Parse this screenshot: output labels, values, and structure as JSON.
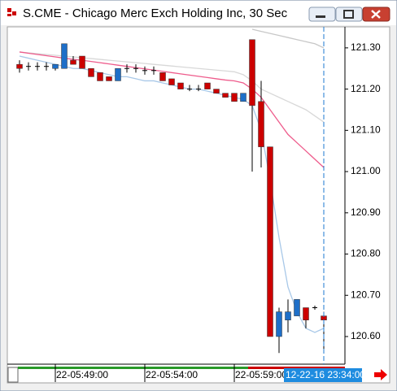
{
  "chart_data": {
    "type": "candlestick",
    "title": "S.CME - Chicago Merc Exch Holding Inc, 30 Sec",
    "categories": [
      null,
      null,
      null,
      null,
      "22-05:49:00",
      null,
      null,
      null,
      null,
      null,
      null,
      null,
      null,
      null,
      "22-05:54:00",
      null,
      null,
      null,
      null,
      null,
      null,
      null,
      null,
      null,
      "22-05:59:00",
      null,
      null,
      null,
      null,
      null,
      null,
      null,
      null,
      null,
      null
    ],
    "open": [
      121.26,
      121.255,
      121.255,
      121.255,
      121.25,
      121.25,
      121.27,
      121.28,
      121.25,
      121.24,
      121.23,
      121.22,
      121.25,
      121.25,
      121.245,
      121.245,
      121.24,
      121.225,
      121.215,
      121.2,
      121.2,
      121.215,
      121.2,
      121.19,
      121.19,
      121.17,
      121.32,
      121.17,
      121.06,
      120.6,
      120.64,
      120.65,
      120.67,
      120.67,
      120.65
    ],
    "high": [
      121.27,
      121.265,
      121.265,
      121.265,
      121.26,
      121.31,
      121.28,
      121.28,
      121.25,
      121.24,
      121.23,
      121.25,
      121.26,
      121.26,
      121.255,
      121.255,
      121.24,
      121.225,
      121.215,
      121.21,
      121.21,
      121.215,
      121.2,
      121.19,
      121.19,
      121.19,
      121.32,
      121.22,
      121.06,
      120.67,
      120.69,
      120.69,
      120.67,
      120.675,
      120.66
    ],
    "low": [
      121.24,
      121.245,
      121.245,
      121.245,
      121.245,
      121.25,
      121.26,
      121.25,
      121.23,
      121.22,
      121.22,
      121.22,
      121.24,
      121.24,
      121.235,
      121.235,
      121.22,
      121.21,
      121.2,
      121.195,
      121.195,
      121.2,
      121.19,
      121.18,
      121.17,
      121.17,
      121.0,
      121.01,
      120.6,
      120.56,
      120.61,
      120.65,
      120.62,
      120.665,
      120.57
    ],
    "close": [
      121.25,
      121.255,
      121.255,
      121.255,
      121.26,
      121.31,
      121.26,
      121.25,
      121.23,
      121.22,
      121.22,
      121.25,
      121.25,
      121.25,
      121.245,
      121.245,
      121.22,
      121.21,
      121.2,
      121.2,
      121.2,
      121.2,
      121.19,
      121.18,
      121.17,
      121.19,
      121.16,
      121.06,
      120.6,
      120.66,
      120.66,
      120.69,
      120.64,
      120.67,
      120.64
    ],
    "up_color": "#1e6fc8",
    "down_color": "#cc0000",
    "overlays": [
      {
        "color": "#d8d8d8",
        "values": [
          121.29,
          121.288,
          121.286,
          121.284,
          121.282,
          121.28,
          121.278,
          121.276,
          121.274,
          121.272,
          121.27,
          121.268,
          121.266,
          121.264,
          121.262,
          121.26,
          121.258,
          121.256,
          121.254,
          121.252,
          121.25,
          121.248,
          121.246,
          121.244,
          121.242,
          121.235,
          121.22,
          121.2,
          121.19,
          121.18,
          121.17,
          121.16,
          121.15,
          121.135,
          121.12
        ]
      },
      {
        "color": "#c8c8c8",
        "values": [
          null,
          null,
          null,
          null,
          null,
          null,
          null,
          null,
          null,
          null,
          null,
          null,
          null,
          null,
          null,
          null,
          null,
          null,
          null,
          null,
          null,
          null,
          null,
          null,
          null,
          null,
          121.345,
          121.34,
          121.335,
          121.33,
          121.325,
          121.32,
          121.315,
          121.31,
          121.3
        ]
      },
      {
        "color": "#ee5c8c",
        "values": [
          121.29,
          121.287,
          121.284,
          121.281,
          121.278,
          121.275,
          121.272,
          121.27,
          121.267,
          121.264,
          121.261,
          121.258,
          121.255,
          121.252,
          121.249,
          121.246,
          121.243,
          121.24,
          121.237,
          121.234,
          121.231,
          121.228,
          121.225,
          121.222,
          121.22,
          121.215,
          121.2,
          121.18,
          121.15,
          121.12,
          121.09,
          121.07,
          121.05,
          121.03,
          121.01
        ]
      },
      {
        "color": "#a8c8e8",
        "values": [
          121.28,
          121.275,
          121.27,
          121.265,
          121.26,
          121.255,
          121.25,
          121.25,
          121.245,
          121.24,
          121.235,
          121.23,
          121.23,
          121.225,
          121.22,
          121.22,
          121.215,
          121.21,
          121.205,
          121.2,
          121.2,
          121.195,
          121.19,
          121.185,
          121.18,
          121.175,
          121.16,
          121.1,
          120.98,
          120.84,
          120.72,
          120.66,
          120.62,
          120.61,
          120.62
        ]
      }
    ],
    "ylim": [
      120.533,
      121.351
    ],
    "yticks": [
      {
        "value": 121.3,
        "label": "121.30"
      },
      {
        "value": 121.2,
        "label": "121.20"
      },
      {
        "value": 121.1,
        "label": "121.10"
      },
      {
        "value": 121.0,
        "label": "121.00"
      },
      {
        "value": 120.9,
        "label": "120.90"
      },
      {
        "value": 120.8,
        "label": "120.80"
      },
      {
        "value": 120.7,
        "label": "120.70"
      },
      {
        "value": 120.6,
        "label": "120.60"
      }
    ],
    "cursor_label": "12-22-16 23:34:00",
    "cursor_index": 34
  }
}
